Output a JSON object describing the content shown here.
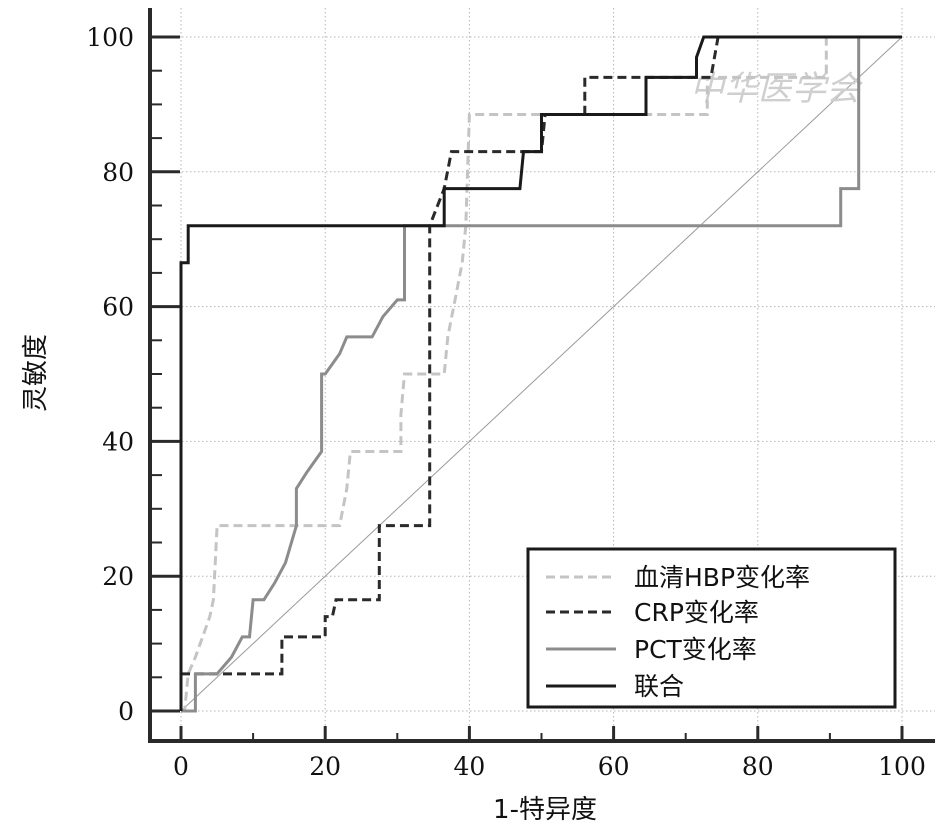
{
  "chart_data": {
    "type": "line",
    "xlabel": "1-特异度",
    "ylabel": "灵敏度",
    "xlim": [
      0,
      100
    ],
    "ylim": [
      0,
      100
    ],
    "xticks": [
      0,
      20,
      40,
      60,
      80,
      100
    ],
    "yticks": [
      0,
      20,
      40,
      60,
      80,
      100
    ],
    "grid": true,
    "legend_position": "bottom-right",
    "reference_line": {
      "x": [
        0,
        100
      ],
      "y": [
        0,
        100
      ]
    },
    "watermark": "中华医学会",
    "series": [
      {
        "name": "血清HBP变化率",
        "color": "#c4c4c4",
        "dash": "dashed",
        "x": [
          0,
          0.5,
          1,
          2,
          3,
          4,
          4.5,
          5,
          9,
          13,
          17,
          20,
          22,
          23,
          23.5,
          26,
          30.5,
          30.5,
          31,
          36.5,
          37,
          38,
          39,
          39.5,
          40,
          41,
          73,
          73,
          89.5,
          89.5,
          94
        ],
        "y": [
          0,
          0,
          5.5,
          8,
          11,
          14,
          16.5,
          27.5,
          27.5,
          27.5,
          27.5,
          27.5,
          27.5,
          33,
          38.5,
          38.5,
          38.5,
          44,
          50,
          50,
          55.5,
          61,
          66.5,
          72,
          88.5,
          88.5,
          88.5,
          94,
          94,
          100,
          100
        ]
      },
      {
        "name": "CRP变化率",
        "color": "#2a2a2a",
        "dash": "dashed",
        "x": [
          0,
          5,
          14,
          14,
          20,
          20,
          21,
          21.5,
          27.5,
          27.5,
          34.5,
          34.5,
          36.5,
          37.5,
          41,
          50,
          50.5,
          56,
          56,
          73.5,
          74.5,
          94
        ],
        "y": [
          5.5,
          5.5,
          5.5,
          11,
          11,
          14,
          14,
          16.5,
          16.5,
          27.5,
          27.5,
          72,
          77.5,
          83,
          83,
          83,
          88.5,
          88.5,
          94,
          94,
          100,
          100
        ]
      },
      {
        "name": "PCT变化率",
        "color": "#8c8c8c",
        "dash": "solid",
        "x": [
          0,
          2,
          2,
          5,
          7,
          8.5,
          9.5,
          10,
          11.5,
          13,
          14.5,
          16,
          16,
          17.5,
          19.5,
          19.5,
          20,
          22,
          23,
          26.5,
          28,
          30,
          31,
          31,
          91.5,
          91.5,
          94,
          94
        ],
        "y": [
          0,
          0,
          5.5,
          5.5,
          8,
          11,
          11,
          16.5,
          16.5,
          19,
          22,
          27.5,
          33,
          35.5,
          38.5,
          50,
          50,
          53,
          55.5,
          55.5,
          58.5,
          61,
          61,
          72,
          72,
          77.5,
          77.5,
          100
        ]
      },
      {
        "name": "联合",
        "color": "#1a1a1a",
        "dash": "solid",
        "x": [
          0,
          0,
          1,
          1,
          36.5,
          36.5,
          47,
          47.5,
          50,
          50,
          50.5,
          64.5,
          64.5,
          71.5,
          71.5,
          72.5,
          100
        ],
        "y": [
          0,
          66.5,
          66.5,
          72,
          72,
          77.5,
          77.5,
          83,
          83,
          88.5,
          88.5,
          88.5,
          94,
          94,
          97,
          100,
          100
        ]
      }
    ]
  }
}
